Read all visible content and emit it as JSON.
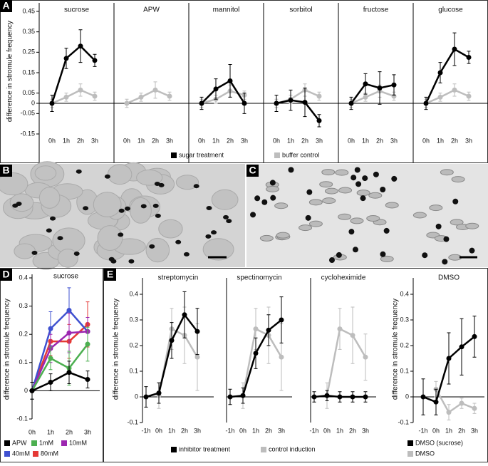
{
  "panel_labels": [
    "A",
    "B",
    "C",
    "D",
    "E"
  ],
  "chart_data": [
    {
      "type": "line",
      "ylabel": "difference in stromule frequency",
      "categories": [
        "0h",
        "1h",
        "2h",
        "3h"
      ],
      "ylim": [
        -0.15,
        0.45
      ],
      "yticks": [
        0.45,
        0.35,
        0.25,
        0.15,
        0.05,
        0,
        -0.05,
        -0.15
      ],
      "legend": [
        {
          "name": "sugar treatment",
          "color": "#000000"
        },
        {
          "name": "buffer control",
          "color": "#bdbdbd"
        }
      ],
      "subplots": [
        {
          "title": "sucrose",
          "series": [
            {
              "values": [
                0,
                0.22,
                0.28,
                0.21
              ],
              "errors": [
                0.04,
                0.05,
                0.08,
                0.03
              ]
            },
            {
              "values": [
                0,
                0.03,
                0.065,
                0.035
              ],
              "errors": [
                0.02,
                0.02,
                0.03,
                0.02
              ]
            }
          ]
        },
        {
          "title": "APW",
          "series": [
            {
              "values": [
                null,
                null,
                null,
                null
              ],
              "errors": [
                null,
                null,
                null,
                null
              ]
            },
            {
              "values": [
                0,
                0.03,
                0.065,
                0.035
              ],
              "errors": [
                0.02,
                0.02,
                0.04,
                0.02
              ]
            }
          ]
        },
        {
          "title": "mannitol",
          "series": [
            {
              "values": [
                0,
                0.07,
                0.11,
                0
              ],
              "errors": [
                0.03,
                0.05,
                0.08,
                0.05
              ]
            },
            {
              "values": [
                0,
                0.02,
                0.06,
                0.04
              ],
              "errors": [
                0.02,
                0.02,
                0.03,
                0.02
              ]
            }
          ]
        },
        {
          "title": "sorbitol",
          "series": [
            {
              "values": [
                0,
                0.015,
                0.005,
                -0.085
              ],
              "errors": [
                0.04,
                0.05,
                0.07,
                0.03
              ]
            },
            {
              "values": [
                0,
                0.02,
                0.065,
                0.035
              ],
              "errors": [
                0.02,
                0.02,
                0.03,
                0.02
              ]
            }
          ]
        },
        {
          "title": "fructose",
          "series": [
            {
              "values": [
                0,
                0.095,
                0.075,
                0.09
              ],
              "errors": [
                0.03,
                0.05,
                0.08,
                0.05
              ]
            },
            {
              "values": [
                0,
                0.03,
                0.06,
                0.035
              ],
              "errors": [
                0.02,
                0.02,
                0.03,
                0.02
              ]
            }
          ]
        },
        {
          "title": "glucose",
          "series": [
            {
              "values": [
                0,
                0.15,
                0.265,
                0.225
              ],
              "errors": [
                0.03,
                0.05,
                0.08,
                0.03
              ]
            },
            {
              "values": [
                0,
                0.03,
                0.065,
                0.035
              ],
              "errors": [
                0.02,
                0.02,
                0.03,
                0.02
              ]
            }
          ]
        }
      ]
    },
    {
      "type": "line",
      "ylabel": "difference in stromule frequency",
      "categories": [
        "0h",
        "1h",
        "2h",
        "3h"
      ],
      "ylim": [
        -0.1,
        0.4
      ],
      "yticks": [
        -0.1,
        0,
        0.1,
        0.2,
        0.3,
        0.4
      ],
      "legend": [
        {
          "name": "APW",
          "color": "#000000"
        },
        {
          "name": "1mM",
          "color": "#4caf50"
        },
        {
          "name": "10mM",
          "color": "#9c27b0"
        },
        {
          "name": "40mM",
          "color": "#3f51d0"
        },
        {
          "name": "80mM",
          "color": "#e53935"
        }
      ],
      "subplots": [
        {
          "title": "sucrose",
          "series": [
            {
              "values": [
                0,
                0.03,
                0.065,
                0.04
              ],
              "errors": [
                0.03,
                0.03,
                0.04,
                0.03
              ]
            },
            {
              "values": [
                0,
                0.115,
                0.08,
                0.165
              ],
              "errors": [
                0.03,
                0.04,
                0.06,
                0.06
              ]
            },
            {
              "values": [
                0,
                0.15,
                0.205,
                0.21
              ],
              "errors": [
                0.03,
                0.05,
                0.07,
                0.05
              ]
            },
            {
              "values": [
                0,
                0.22,
                0.285,
                0.21
              ],
              "errors": [
                0.03,
                0.06,
                0.08,
                0.05
              ]
            },
            {
              "values": [
                0,
                0.175,
                0.175,
                0.235
              ],
              "errors": [
                0.03,
                0.05,
                0.06,
                0.08
              ]
            }
          ]
        }
      ]
    },
    {
      "type": "line",
      "ylabel": "difference in stromule frequency",
      "categories": [
        "-1h",
        "0h",
        "1h",
        "2h",
        "3h"
      ],
      "ylim": [
        -0.1,
        0.45
      ],
      "yticks": [
        -0.1,
        0,
        0.1,
        0.2,
        0.3,
        0.4
      ],
      "legend": [
        {
          "name": "inhibitor treatment",
          "color": "#000000"
        },
        {
          "name": "control induction",
          "color": "#bdbdbd"
        }
      ],
      "subplots": [
        {
          "title": "streptomycin",
          "series": [
            {
              "values": [
                0,
                0.015,
                0.22,
                0.32,
                0.255
              ],
              "errors": [
                0.04,
                0.04,
                0.07,
                0.09,
                0.09
              ]
            },
            {
              "values": [
                null,
                0.005,
                0.265,
                0.24,
                0.155
              ],
              "errors": [
                null,
                0.05,
                0.08,
                0.11,
                0.13
              ]
            }
          ]
        },
        {
          "title": "spectinomycin",
          "series": [
            {
              "values": [
                0,
                0.005,
                0.17,
                0.26,
                0.3
              ],
              "errors": [
                0.03,
                0.03,
                0.06,
                0.06,
                0.09
              ]
            },
            {
              "values": [
                null,
                0.005,
                0.265,
                0.24,
                0.155
              ],
              "errors": [
                null,
                0.05,
                0.08,
                0.11,
                0.13
              ]
            }
          ]
        },
        {
          "title": "cycloheximide",
          "series": [
            {
              "values": [
                0,
                0.005,
                0,
                0,
                0
              ],
              "errors": [
                0.02,
                0.02,
                0.02,
                0.02,
                0.02
              ]
            },
            {
              "values": [
                null,
                0.005,
                0.265,
                0.24,
                0.155
              ],
              "errors": [
                null,
                0.05,
                0.08,
                0.11,
                0.09
              ]
            }
          ]
        }
      ]
    },
    {
      "type": "line",
      "ylabel": "difference in stromule frequency",
      "categories": [
        "-1h",
        "0h",
        "1h",
        "2h",
        "3h"
      ],
      "ylim": [
        -0.1,
        0.45
      ],
      "yticks": [
        -0.1,
        0,
        0.1,
        0.2,
        0.3,
        0.4
      ],
      "legend": [
        {
          "name": "DMSO (sucrose)",
          "color": "#000000"
        },
        {
          "name": "DMSO",
          "color": "#bdbdbd"
        }
      ],
      "subplots": [
        {
          "title": "DMSO",
          "series": [
            {
              "values": [
                0,
                -0.02,
                0.15,
                0.195,
                0.235
              ],
              "errors": [
                0.07,
                0.05,
                0.1,
                0.11,
                0.08
              ]
            },
            {
              "values": [
                null,
                0.03,
                -0.06,
                -0.025,
                -0.045
              ],
              "errors": [
                null,
                0.03,
                0.03,
                0.02,
                0.02
              ]
            }
          ]
        }
      ]
    }
  ]
}
